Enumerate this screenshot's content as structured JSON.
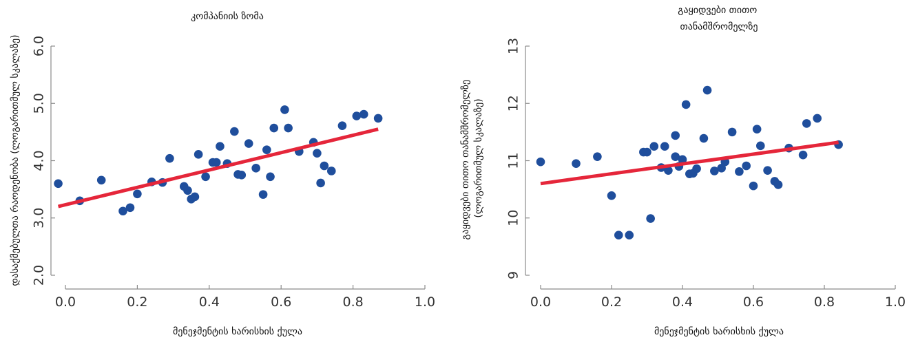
{
  "chart_data": [
    {
      "type": "scatter",
      "title_lines": [
        "კომპანიის ზომა"
      ],
      "xlabel": "მენეჯმენტის ხარისხის ქულა",
      "ylabel_lines": [
        "დასაქმებულთა რაოდენობა (ლოგარითმულ სკალაზე)"
      ],
      "xlim": [
        -0.03,
        1.0
      ],
      "ylim": [
        1.85,
        6.1
      ],
      "xticks": [
        0.0,
        0.2,
        0.4,
        0.6,
        0.8,
        1.0
      ],
      "xtick_labels": [
        "0.0",
        "0.2",
        "0.4",
        "0.6",
        "0.8",
        "1.0"
      ],
      "yticks": [
        2.0,
        3.0,
        4.0,
        5.0,
        6.0
      ],
      "ytick_labels": [
        "2.0",
        "3.0",
        "4.0",
        "5.0",
        "6.0"
      ],
      "grid": false,
      "colors": {
        "points": "#1f4e9c",
        "fit_line": "#e5263a"
      },
      "points": [
        {
          "x": -0.02,
          "y": 3.6
        },
        {
          "x": 0.04,
          "y": 3.3
        },
        {
          "x": 0.1,
          "y": 3.66
        },
        {
          "x": 0.16,
          "y": 3.12
        },
        {
          "x": 0.18,
          "y": 3.18
        },
        {
          "x": 0.2,
          "y": 3.42
        },
        {
          "x": 0.24,
          "y": 3.63
        },
        {
          "x": 0.27,
          "y": 3.62
        },
        {
          "x": 0.29,
          "y": 4.04
        },
        {
          "x": 0.33,
          "y": 3.55
        },
        {
          "x": 0.34,
          "y": 3.48
        },
        {
          "x": 0.35,
          "y": 3.33
        },
        {
          "x": 0.36,
          "y": 3.37
        },
        {
          "x": 0.37,
          "y": 4.11
        },
        {
          "x": 0.39,
          "y": 3.72
        },
        {
          "x": 0.41,
          "y": 3.97
        },
        {
          "x": 0.42,
          "y": 3.97
        },
        {
          "x": 0.43,
          "y": 4.25
        },
        {
          "x": 0.45,
          "y": 3.95
        },
        {
          "x": 0.47,
          "y": 4.51
        },
        {
          "x": 0.48,
          "y": 3.76
        },
        {
          "x": 0.49,
          "y": 3.75
        },
        {
          "x": 0.51,
          "y": 4.3
        },
        {
          "x": 0.53,
          "y": 3.87
        },
        {
          "x": 0.55,
          "y": 3.41
        },
        {
          "x": 0.56,
          "y": 4.19
        },
        {
          "x": 0.57,
          "y": 3.72
        },
        {
          "x": 0.58,
          "y": 4.57
        },
        {
          "x": 0.61,
          "y": 4.89
        },
        {
          "x": 0.62,
          "y": 4.57
        },
        {
          "x": 0.65,
          "y": 4.16
        },
        {
          "x": 0.69,
          "y": 4.32
        },
        {
          "x": 0.7,
          "y": 4.13
        },
        {
          "x": 0.71,
          "y": 3.61
        },
        {
          "x": 0.72,
          "y": 3.91
        },
        {
          "x": 0.74,
          "y": 3.82
        },
        {
          "x": 0.77,
          "y": 4.61
        },
        {
          "x": 0.81,
          "y": 4.78
        },
        {
          "x": 0.83,
          "y": 4.81
        },
        {
          "x": 0.87,
          "y": 4.74
        }
      ],
      "fit_line": {
        "x": [
          -0.02,
          0.87
        ],
        "y": [
          3.2,
          4.55
        ]
      }
    },
    {
      "type": "scatter",
      "title_lines": [
        "გაყიდვები თითო",
        "თანამშრომელზე"
      ],
      "xlabel": "მენეჯმენტის ხარისხის ქულა",
      "ylabel_lines": [
        "გაყიდვები თითო თანამშრომელზე",
        "(ლოგარითმულ სკალაზე)"
      ],
      "xlim": [
        -0.03,
        1.0
      ],
      "ylim": [
        8.85,
        13.05
      ],
      "xticks": [
        0.0,
        0.2,
        0.4,
        0.6,
        0.8,
        1.0
      ],
      "xtick_labels": [
        "0.0",
        "0.2",
        "0.4",
        "0.6",
        "0.8",
        "1.0"
      ],
      "yticks": [
        9,
        10,
        11,
        12,
        13
      ],
      "ytick_labels": [
        "9",
        "10",
        "11",
        "12",
        "13"
      ],
      "grid": false,
      "colors": {
        "points": "#1f4e9c",
        "fit_line": "#e5263a"
      },
      "points": [
        {
          "x": 0.0,
          "y": 10.98
        },
        {
          "x": 0.1,
          "y": 10.95
        },
        {
          "x": 0.16,
          "y": 11.07
        },
        {
          "x": 0.2,
          "y": 10.39
        },
        {
          "x": 0.22,
          "y": 9.7
        },
        {
          "x": 0.25,
          "y": 9.7
        },
        {
          "x": 0.29,
          "y": 11.15
        },
        {
          "x": 0.3,
          "y": 11.15
        },
        {
          "x": 0.31,
          "y": 9.99
        },
        {
          "x": 0.32,
          "y": 11.25
        },
        {
          "x": 0.34,
          "y": 10.88
        },
        {
          "x": 0.35,
          "y": 11.25
        },
        {
          "x": 0.36,
          "y": 10.83
        },
        {
          "x": 0.38,
          "y": 11.44
        },
        {
          "x": 0.38,
          "y": 11.07
        },
        {
          "x": 0.39,
          "y": 10.9
        },
        {
          "x": 0.4,
          "y": 11.02
        },
        {
          "x": 0.41,
          "y": 11.98
        },
        {
          "x": 0.42,
          "y": 10.77
        },
        {
          "x": 0.43,
          "y": 10.78
        },
        {
          "x": 0.44,
          "y": 10.86
        },
        {
          "x": 0.46,
          "y": 11.39
        },
        {
          "x": 0.47,
          "y": 12.23
        },
        {
          "x": 0.49,
          "y": 10.82
        },
        {
          "x": 0.51,
          "y": 10.87
        },
        {
          "x": 0.52,
          "y": 10.98
        },
        {
          "x": 0.54,
          "y": 11.5
        },
        {
          "x": 0.56,
          "y": 10.81
        },
        {
          "x": 0.58,
          "y": 10.91
        },
        {
          "x": 0.6,
          "y": 10.56
        },
        {
          "x": 0.61,
          "y": 11.55
        },
        {
          "x": 0.62,
          "y": 11.26
        },
        {
          "x": 0.64,
          "y": 10.83
        },
        {
          "x": 0.66,
          "y": 10.64
        },
        {
          "x": 0.67,
          "y": 10.58
        },
        {
          "x": 0.7,
          "y": 11.22
        },
        {
          "x": 0.74,
          "y": 11.1
        },
        {
          "x": 0.75,
          "y": 11.65
        },
        {
          "x": 0.78,
          "y": 11.74
        },
        {
          "x": 0.84,
          "y": 11.28
        }
      ],
      "fit_line": {
        "x": [
          0.0,
          0.84
        ],
        "y": [
          10.6,
          11.32
        ]
      }
    }
  ]
}
